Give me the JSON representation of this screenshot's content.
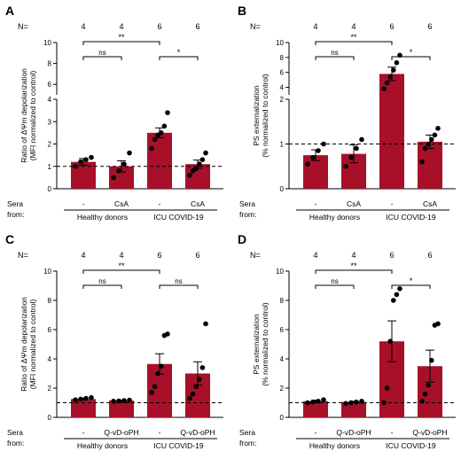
{
  "panels": [
    {
      "letter": "A",
      "n_prefix": "N=",
      "n_values": [
        "4",
        "4",
        "6",
        "6"
      ],
      "ylabel_line1": "Ratio of ΔΨm depolarization",
      "ylabel_line2": "(MFI normalized to control)",
      "sera_label_line1": "Sera",
      "sera_label_line2": "from:",
      "group_labels": [
        "Healthy donors",
        "ICU COVID-19"
      ],
      "chart_data": {
        "type": "bar",
        "categories": [
          "-",
          "CsA",
          "-",
          "CsA"
        ],
        "values": [
          1.2,
          1.0,
          2.5,
          1.1
        ],
        "sem": [
          0.15,
          0.25,
          0.22,
          0.18
        ],
        "points": [
          [
            1.0,
            1.2,
            1.3,
            1.4
          ],
          [
            0.5,
            0.8,
            1.1,
            1.6
          ],
          [
            1.8,
            2.2,
            2.4,
            2.5,
            2.8,
            3.4
          ],
          [
            0.6,
            0.8,
            0.9,
            1.1,
            1.3,
            1.6
          ]
        ],
        "baseline": 1,
        "yaxis": {
          "lower_ticks": [
            0,
            1,
            2,
            3,
            4
          ],
          "upper_ticks": [
            6,
            8,
            10
          ],
          "lower_range": [
            0,
            4
          ],
          "upper_range": [
            5,
            10
          ]
        },
        "significance": [
          {
            "from": 0,
            "to": 1,
            "label": "ns",
            "level": 1
          },
          {
            "from": 2,
            "to": 3,
            "label": "*",
            "level": 1
          },
          {
            "from": 0,
            "to": 2,
            "label": "**",
            "level": 2
          }
        ]
      }
    },
    {
      "letter": "B",
      "n_prefix": "N=",
      "n_values": [
        "4",
        "4",
        "6",
        "6"
      ],
      "ylabel_line1": "PS externalization",
      "ylabel_line2": "(% normalized to control)",
      "sera_label_line1": "Sera",
      "sera_label_line2": "from:",
      "group_labels": [
        "Healthy donors",
        "ICU COVID-19"
      ],
      "chart_data": {
        "type": "bar",
        "categories": [
          "-",
          "CsA",
          "-",
          "CsA"
        ],
        "values": [
          0.75,
          0.78,
          5.8,
          1.05
        ],
        "sem": [
          0.12,
          0.2,
          0.9,
          0.15
        ],
        "points": [
          [
            0.55,
            0.7,
            0.85,
            1.0
          ],
          [
            0.5,
            0.7,
            0.9,
            1.1
          ],
          [
            3.8,
            4.6,
            5.4,
            6.3,
            7.3,
            8.3
          ],
          [
            0.6,
            0.9,
            1.0,
            1.1,
            1.2,
            1.35
          ]
        ],
        "baseline": 1,
        "yaxis": {
          "lower_ticks": [
            0,
            1,
            2
          ],
          "upper_ticks": [
            4,
            6,
            8,
            10
          ],
          "lower_range": [
            0,
            2
          ],
          "upper_range": [
            3,
            10
          ]
        },
        "significance": [
          {
            "from": 0,
            "to": 1,
            "label": "ns",
            "level": 1
          },
          {
            "from": 2,
            "to": 3,
            "label": "*",
            "level": 1
          },
          {
            "from": 0,
            "to": 2,
            "label": "**",
            "level": 2
          }
        ]
      }
    },
    {
      "letter": "C",
      "n_prefix": "N=",
      "n_values": [
        "4",
        "4",
        "6",
        "6"
      ],
      "ylabel_line1": "Ratio of ΔΨm depolarization",
      "ylabel_line2": "(MFI normalized to control)",
      "sera_label_line1": "Sera",
      "sera_label_line2": "from:",
      "group_labels": [
        "Healthy donors",
        "ICU COVID-19"
      ],
      "chart_data": {
        "type": "bar",
        "categories": [
          "-",
          "Q-vD-oPH",
          "-",
          "Q-vD-oPH"
        ],
        "values": [
          1.25,
          1.15,
          3.65,
          3.0
        ],
        "sem": [
          0.05,
          0.03,
          0.7,
          0.8
        ],
        "points": [
          [
            1.2,
            1.25,
            1.3,
            1.35
          ],
          [
            1.1,
            1.12,
            1.15,
            1.18
          ],
          [
            1.7,
            2.1,
            3.0,
            3.5,
            5.6,
            5.7
          ],
          [
            1.3,
            1.6,
            2.1,
            2.6,
            3.4,
            6.4
          ]
        ],
        "baseline": 1,
        "yaxis": {
          "ticks": [
            0,
            2,
            4,
            6,
            8,
            10
          ],
          "range": [
            0,
            10
          ]
        },
        "significance": [
          {
            "from": 0,
            "to": 1,
            "label": "ns",
            "level": 1
          },
          {
            "from": 2,
            "to": 3,
            "label": "ns",
            "level": 1
          },
          {
            "from": 0,
            "to": 2,
            "label": "**",
            "level": 2
          }
        ]
      }
    },
    {
      "letter": "D",
      "n_prefix": "N=",
      "n_values": [
        "4",
        "4",
        "6",
        "6"
      ],
      "ylabel_line1": "PS externalization",
      "ylabel_line2": "(% normalized to control)",
      "sera_label_line1": "Sera",
      "sera_label_line2": "from:",
      "group_labels": [
        "Healthy donors",
        "ICU COVID-19"
      ],
      "chart_data": {
        "type": "bar",
        "categories": [
          "-",
          "Q-vD-oPH",
          "-",
          "Q-vD-oPH"
        ],
        "values": [
          1.1,
          1.05,
          5.2,
          3.5
        ],
        "sem": [
          0.08,
          0.05,
          1.4,
          1.1
        ],
        "points": [
          [
            1.0,
            1.05,
            1.1,
            1.2
          ],
          [
            0.95,
            1.0,
            1.05,
            1.1
          ],
          [
            1.0,
            2.0,
            5.2,
            8.0,
            8.4,
            8.8
          ],
          [
            1.1,
            1.6,
            2.2,
            3.9,
            6.3,
            6.4
          ]
        ],
        "baseline": 1,
        "yaxis": {
          "ticks": [
            0,
            2,
            4,
            6,
            8,
            10
          ],
          "range": [
            0,
            10
          ]
        },
        "significance": [
          {
            "from": 0,
            "to": 1,
            "label": "ns",
            "level": 1
          },
          {
            "from": 2,
            "to": 3,
            "label": "*",
            "level": 1
          },
          {
            "from": 0,
            "to": 2,
            "label": "**",
            "level": 2
          }
        ]
      }
    }
  ],
  "colors": {
    "bar": "#a8102a",
    "dot": "#000000",
    "axis": "#000000",
    "baseline": "#000000"
  }
}
